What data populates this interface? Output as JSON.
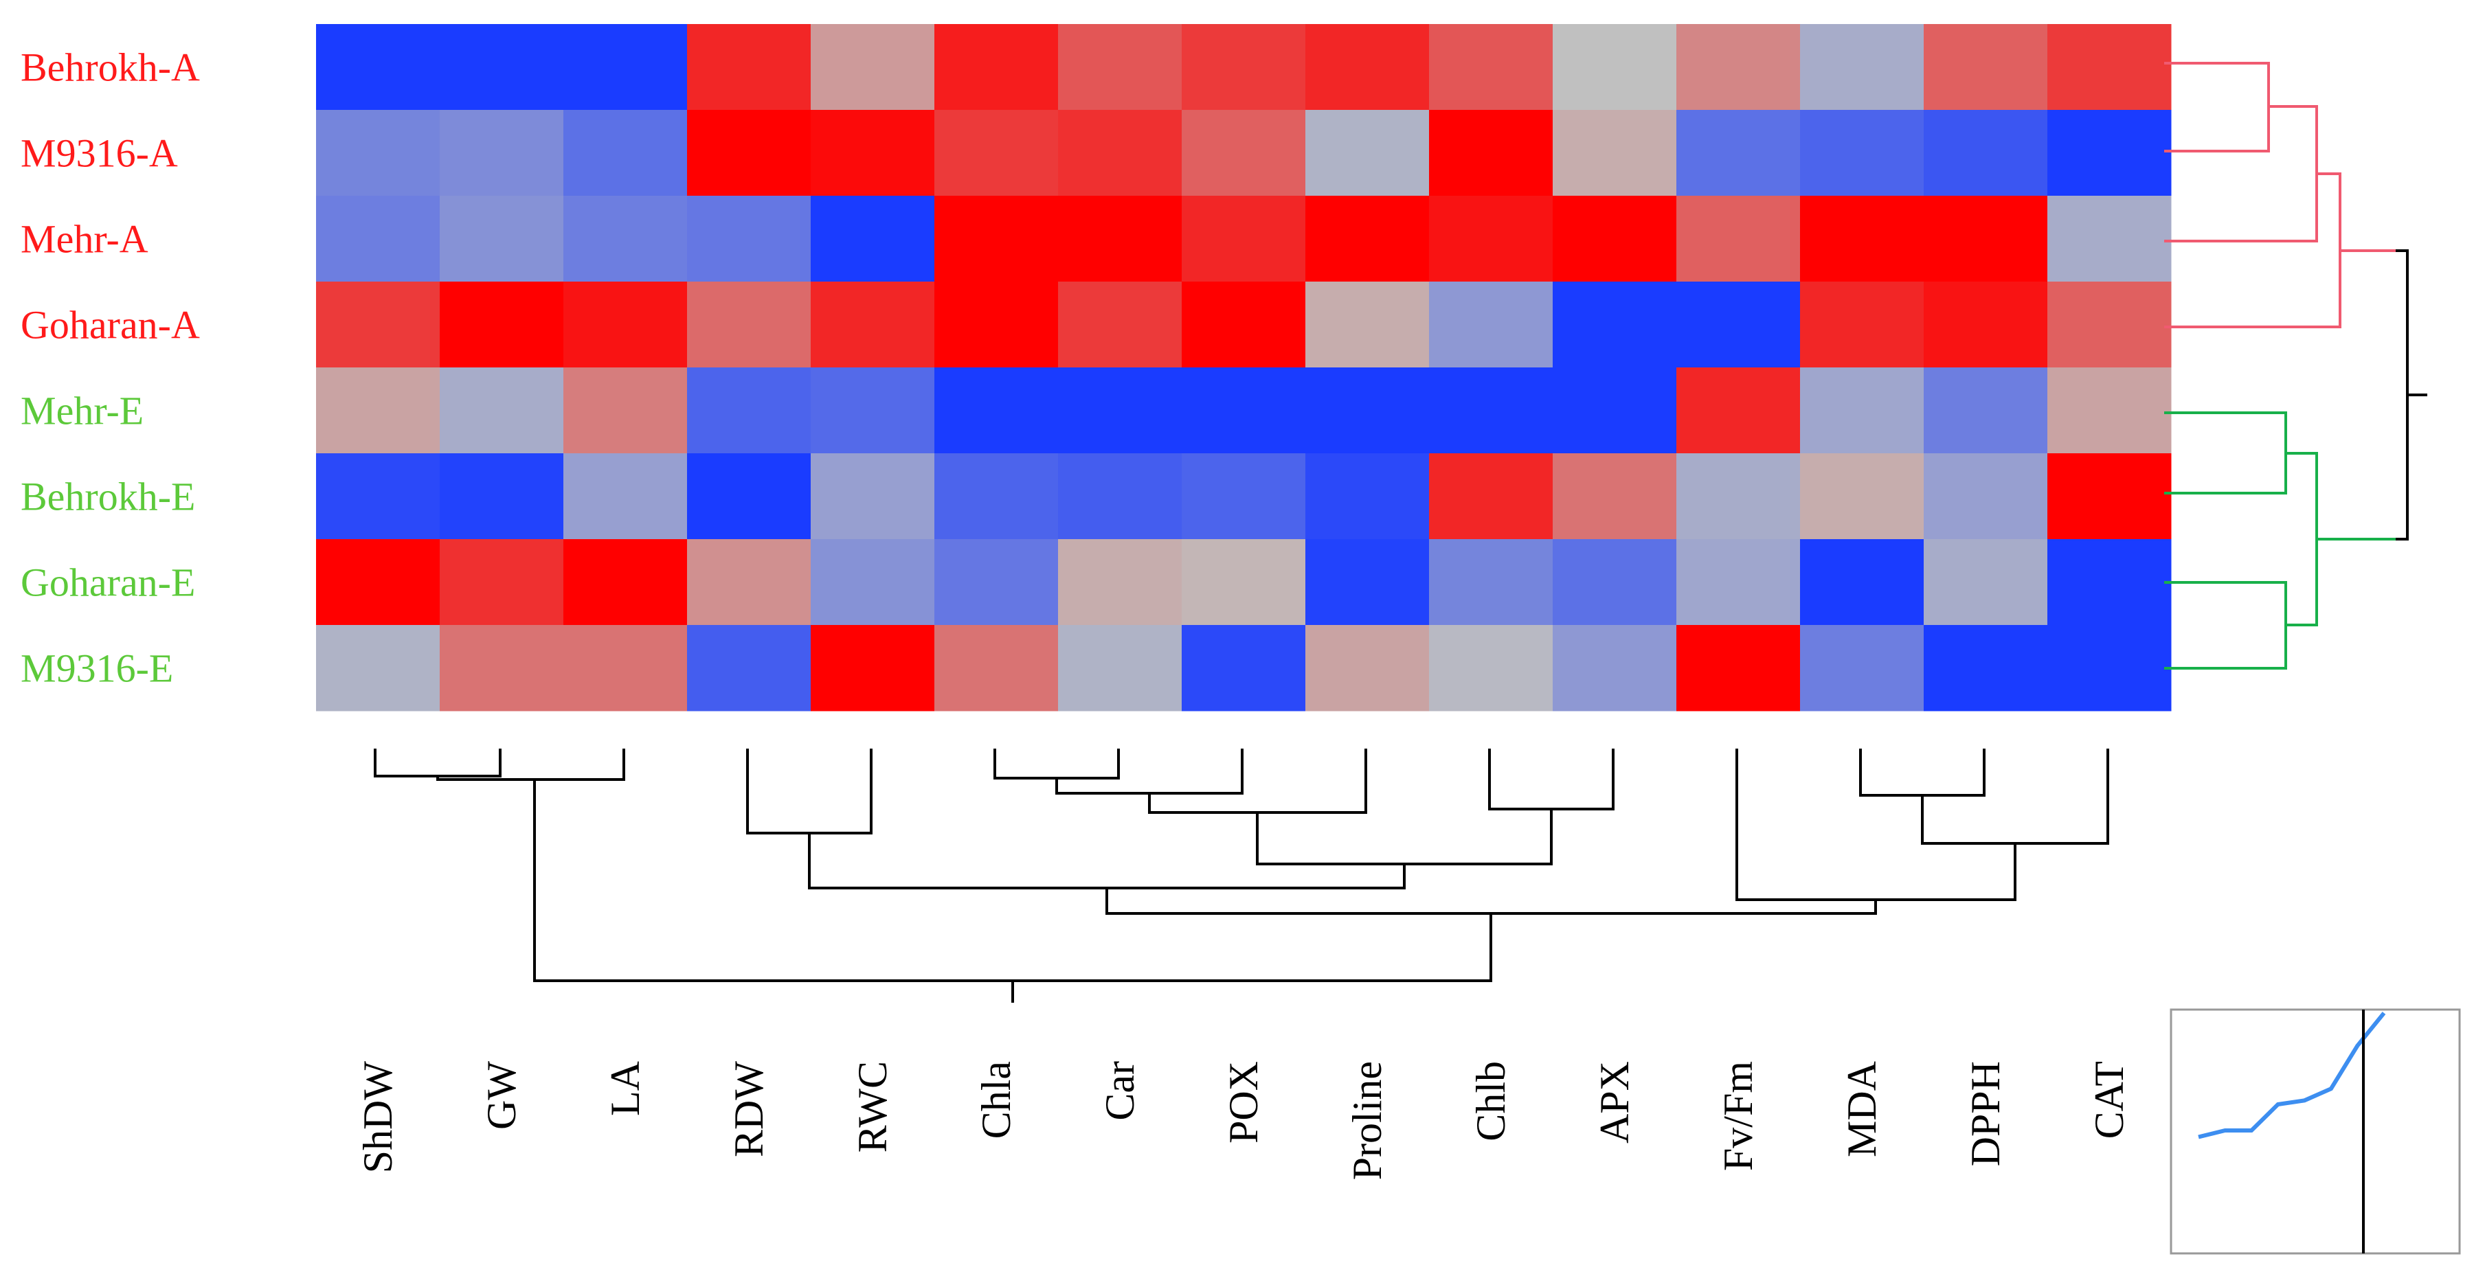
{
  "chart_data": {
    "type": "heatmap",
    "title": "",
    "rows": [
      {
        "label": "Behrokh-A",
        "group": "A"
      },
      {
        "label": "M9316-A",
        "group": "A"
      },
      {
        "label": "Mehr-A",
        "group": "A"
      },
      {
        "label": "Goharan-A",
        "group": "A"
      },
      {
        "label": "Mehr-E",
        "group": "E"
      },
      {
        "label": "Behrokh-E",
        "group": "E"
      },
      {
        "label": "Goharan-E",
        "group": "E"
      },
      {
        "label": "M9316-E",
        "group": "E"
      }
    ],
    "columns": [
      "ShDW",
      "GW",
      "LA",
      "RDW",
      "RWC",
      "Chla",
      "Car",
      "POX",
      "Proline",
      "Chlb",
      "APX",
      "Fv/Fm",
      "MDA",
      "DPPH",
      "CAT"
    ],
    "values": [
      [
        -1.0,
        -1.0,
        -1.0,
        0.8,
        0.2,
        0.85,
        0.55,
        0.7,
        0.8,
        0.55,
        0.0,
        0.3,
        -0.15,
        0.5,
        0.7
      ],
      [
        -0.45,
        -0.4,
        -0.6,
        1.0,
        0.95,
        0.7,
        0.75,
        0.5,
        -0.1,
        1.0,
        0.1,
        -0.6,
        -0.7,
        -0.8,
        -1.0
      ],
      [
        -0.5,
        -0.35,
        -0.5,
        -0.55,
        -1.0,
        1.0,
        1.0,
        0.8,
        1.0,
        0.9,
        1.0,
        0.5,
        1.0,
        1.0,
        -0.15
      ],
      [
        0.7,
        1.0,
        0.9,
        0.45,
        0.8,
        1.0,
        0.7,
        1.0,
        0.1,
        -0.3,
        -1.0,
        -1.0,
        0.8,
        0.9,
        0.5
      ],
      [
        0.15,
        -0.15,
        0.35,
        -0.7,
        -0.65,
        -1.0,
        -1.0,
        -1.0,
        -1.0,
        -1.0,
        -1.0,
        0.8,
        -0.2,
        -0.5,
        0.15
      ],
      [
        -0.9,
        -0.95,
        -0.25,
        -1.0,
        -0.25,
        -0.7,
        -0.75,
        -0.7,
        -0.9,
        0.8,
        0.4,
        -0.15,
        0.1,
        -0.25,
        1.0
      ],
      [
        1.0,
        0.75,
        1.0,
        0.25,
        -0.35,
        -0.55,
        0.1,
        0.05,
        -0.95,
        -0.45,
        -0.6,
        -0.2,
        -1.0,
        -0.15,
        -1.0
      ],
      [
        -0.1,
        0.4,
        0.4,
        -0.75,
        1.0,
        0.4,
        -0.1,
        -0.9,
        0.15,
        -0.05,
        -0.3,
        1.0,
        -0.5,
        -1.0,
        -1.0
      ]
    ],
    "value_range": [
      -1,
      1
    ],
    "colors": {
      "low": "#1a3cff",
      "mid": "#c0c0c0",
      "high": "#ff0000"
    },
    "group_colors": {
      "A": "#ff1a1a",
      "E": "#5cc93a"
    },
    "dendrogram_colors": {
      "A": "#f05a70",
      "E": "#18b04a",
      "root": "#000000"
    },
    "row_clusters": [
      [
        "Behrokh-A",
        "M9316-A",
        "Mehr-A",
        "Goharan-A"
      ],
      [
        "Mehr-E",
        "Behrokh-E",
        "Goharan-E",
        "M9316-E"
      ]
    ],
    "color_key": {
      "type": "line",
      "values": [
        0.05,
        0.1,
        0.1,
        0.3,
        0.33,
        0.42,
        0.75,
        1.0
      ],
      "cut": 0.62
    }
  }
}
